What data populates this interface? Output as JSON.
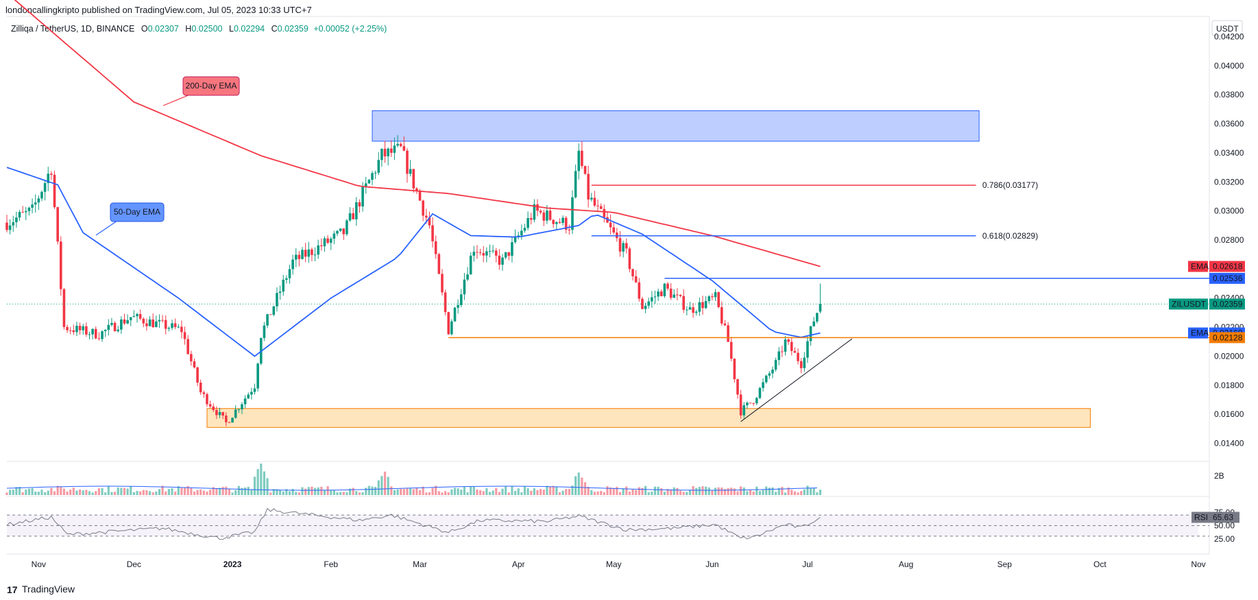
{
  "header": {
    "published": "londoncallingkripto published on TradingView.com, Jul 05, 2023 10:33 UTC+7"
  },
  "symbol": {
    "name": "Zilliqa / TetherUS, 1D, BINANCE",
    "ohlc": [
      {
        "key": "O",
        "value": "0.02307"
      },
      {
        "key": "H",
        "value": "0.02500"
      },
      {
        "key": "L",
        "value": "0.02294"
      },
      {
        "key": "C",
        "value": "0.02359"
      }
    ],
    "change": "+0.00052 (+2.25%)"
  },
  "price_axis": {
    "currency": "USDT"
  },
  "branding": {
    "logo_icon": "17",
    "logo_text": "TradingView"
  },
  "colors": {
    "up": "#089981",
    "down": "#f23645",
    "ema200": "#f23645",
    "ema50": "#2962ff",
    "zone_blue": "#b2c6ff",
    "zone_orange": "#ffe0b2",
    "support": "#f57c00",
    "rsi": "#787b86"
  },
  "chart_data": [
    {
      "type": "candlestick",
      "title": "",
      "x_axis": {
        "ticks": [
          "Nov",
          "Dec",
          "2023",
          "Feb",
          "Mar",
          "Apr",
          "May",
          "Jun",
          "Jul",
          "Aug",
          "Sep",
          "Oct",
          "Nov"
        ]
      },
      "y_axis": {
        "ticks": [
          "0.04200",
          "0.04000",
          "0.03800",
          "0.03600",
          "0.03400",
          "0.03200",
          "0.03000",
          "0.02800",
          "0.02600",
          "0.02400",
          "0.02200",
          "0.02000",
          "0.01800",
          "0.01600",
          "0.01400"
        ],
        "range": [
          0.0128,
          0.0432
        ]
      },
      "ohlc_keyframes": [
        {
          "date": "2022-10-22",
          "close": 0.0292
        },
        {
          "date": "2022-10-30",
          "close": 0.03
        },
        {
          "date": "2022-11-05",
          "close": 0.033
        },
        {
          "date": "2022-11-09",
          "close": 0.022
        },
        {
          "date": "2022-11-20",
          "close": 0.0215
        },
        {
          "date": "2022-11-30",
          "close": 0.0227
        },
        {
          "date": "2022-12-16",
          "close": 0.0218
        },
        {
          "date": "2022-12-22",
          "close": 0.0175
        },
        {
          "date": "2022-12-30",
          "close": 0.0154
        },
        {
          "date": "2023-01-08",
          "close": 0.018
        },
        {
          "date": "2023-01-10",
          "close": 0.0215
        },
        {
          "date": "2023-01-20",
          "close": 0.0265
        },
        {
          "date": "2023-02-05",
          "close": 0.0285
        },
        {
          "date": "2023-02-17",
          "close": 0.0338
        },
        {
          "date": "2023-02-23",
          "close": 0.0342
        },
        {
          "date": "2023-03-04",
          "close": 0.029
        },
        {
          "date": "2023-03-10",
          "close": 0.0218
        },
        {
          "date": "2023-03-18",
          "close": 0.0275
        },
        {
          "date": "2023-03-27",
          "close": 0.0265
        },
        {
          "date": "2023-04-06",
          "close": 0.03
        },
        {
          "date": "2023-04-17",
          "close": 0.029
        },
        {
          "date": "2023-04-20",
          "close": 0.034
        },
        {
          "date": "2023-04-23",
          "close": 0.031
        },
        {
          "date": "2023-05-05",
          "close": 0.027
        },
        {
          "date": "2023-05-10",
          "close": 0.0234
        },
        {
          "date": "2023-05-17",
          "close": 0.0247
        },
        {
          "date": "2023-05-25",
          "close": 0.0232
        },
        {
          "date": "2023-06-02",
          "close": 0.024
        },
        {
          "date": "2023-06-06",
          "close": 0.021
        },
        {
          "date": "2023-06-10",
          "close": 0.0162
        },
        {
          "date": "2023-06-14",
          "close": 0.017
        },
        {
          "date": "2023-06-21",
          "close": 0.0195
        },
        {
          "date": "2023-06-24",
          "close": 0.021
        },
        {
          "date": "2023-06-29",
          "close": 0.0195
        },
        {
          "date": "2023-07-03",
          "close": 0.0225
        },
        {
          "date": "2023-07-05",
          "close": 0.02359
        }
      ],
      "last_bar": {
        "open": 0.02307,
        "high": 0.025,
        "low": 0.02294,
        "close": 0.02359
      },
      "indicators": [
        {
          "name": "EMA",
          "label_on_chart": "200-Day EMA",
          "last": "0.02618",
          "keyframes": [
            {
              "date": "2022-10-22",
              "value": 0.045
            },
            {
              "date": "2022-12-01",
              "value": 0.0375
            },
            {
              "date": "2023-01-10",
              "value": 0.0338
            },
            {
              "date": "2023-02-10",
              "value": 0.0317
            },
            {
              "date": "2023-03-10",
              "value": 0.0312
            },
            {
              "date": "2023-04-10",
              "value": 0.0302
            },
            {
              "date": "2023-05-01",
              "value": 0.0299
            },
            {
              "date": "2023-06-01",
              "value": 0.0283
            },
            {
              "date": "2023-07-05",
              "value": 0.02618
            }
          ]
        },
        {
          "name": "EMA",
          "label_on_chart": "50-Day EMA",
          "last": "0.02160",
          "keyframes": [
            {
              "date": "2022-10-22",
              "value": 0.033
            },
            {
              "date": "2022-11-07",
              "value": 0.0318
            },
            {
              "date": "2022-11-15",
              "value": 0.0285
            },
            {
              "date": "2022-12-15",
              "value": 0.024
            },
            {
              "date": "2023-01-08",
              "value": 0.02
            },
            {
              "date": "2023-02-01",
              "value": 0.024
            },
            {
              "date": "2023-02-22",
              "value": 0.0268
            },
            {
              "date": "2023-03-05",
              "value": 0.0298
            },
            {
              "date": "2023-03-17",
              "value": 0.0283
            },
            {
              "date": "2023-04-01",
              "value": 0.0282
            },
            {
              "date": "2023-04-20",
              "value": 0.029
            },
            {
              "date": "2023-04-25",
              "value": 0.0298
            },
            {
              "date": "2023-05-10",
              "value": 0.0284
            },
            {
              "date": "2023-06-01",
              "value": 0.0252
            },
            {
              "date": "2023-06-20",
              "value": 0.0217
            },
            {
              "date": "2023-06-29",
              "value": 0.0213
            },
            {
              "date": "2023-07-05",
              "value": 0.0216
            }
          ]
        }
      ],
      "zones": [
        {
          "from": "2023-02-14",
          "to": "2023-08-24",
          "low": 0.0348,
          "high": 0.0369,
          "color": "blue"
        },
        {
          "from": "2022-12-24",
          "to": "2023-09-28",
          "low": 0.0151,
          "high": 0.0164,
          "color": "orange"
        }
      ],
      "levels": [
        {
          "label": "0.786(0.03177)",
          "price": 0.03177,
          "from": "2023-04-24",
          "to": "2023-08-23",
          "label_at": "2023-08-25"
        },
        {
          "label": "0.618(0.02829)",
          "price": 0.02829,
          "from": "2023-04-24",
          "to": "2023-08-23",
          "label_at": "2023-08-25"
        },
        {
          "label": "",
          "price": 0.02536,
          "from": "2023-05-17",
          "to": "2023-11-01"
        },
        {
          "label": "",
          "price": 0.02128,
          "from": "2023-03-10",
          "to": "2023-11-01"
        }
      ],
      "trendline": {
        "from": {
          "date": "2023-06-10",
          "price": 0.0155
        },
        "to": {
          "date": "2023-07-15",
          "price": 0.0212
        }
      },
      "axis_tags": [
        {
          "name": "EMA",
          "value": "0.02618",
          "price": 0.02618,
          "color": "#f23645"
        },
        {
          "name": "",
          "value": "0.02536",
          "price": 0.02536,
          "color": "#2962ff"
        },
        {
          "name": "ZILUSDT",
          "value": "0.02359",
          "price": 0.02359,
          "color": "#089981"
        },
        {
          "name": "EMA",
          "value": "0.02160",
          "price": 0.0216,
          "color": "#2962ff"
        },
        {
          "name": "",
          "value": "0.02128",
          "price": 0.02128,
          "color": "#f57c00"
        }
      ],
      "annotations": [
        "200-Day EMA",
        "50-Day EMA"
      ]
    },
    {
      "type": "bar",
      "title": "Volume",
      "y_axis": {
        "ticks": [
          "2B"
        ]
      },
      "notable_spikes": [
        {
          "date": "2023-01-10",
          "value": "~2.4B"
        },
        {
          "date": "2023-02-18",
          "value": "~1.3B"
        },
        {
          "date": "2023-04-20",
          "value": "~1.4B"
        }
      ]
    },
    {
      "type": "line",
      "title": "RSI",
      "last": "65.63",
      "y_axis": {
        "ticks": [
          "75.00",
          "50.00",
          "25.00"
        ],
        "range": [
          0,
          100
        ]
      },
      "bands": [
        30,
        70
      ],
      "keyframes": [
        {
          "date": "2022-10-22",
          "value": 52
        },
        {
          "date": "2022-11-05",
          "value": 66
        },
        {
          "date": "2022-11-10",
          "value": 33
        },
        {
          "date": "2022-12-10",
          "value": 45
        },
        {
          "date": "2022-12-28",
          "value": 26
        },
        {
          "date": "2023-01-08",
          "value": 38
        },
        {
          "date": "2023-01-12",
          "value": 80
        },
        {
          "date": "2023-01-22",
          "value": 73
        },
        {
          "date": "2023-02-10",
          "value": 60
        },
        {
          "date": "2023-02-20",
          "value": 70
        },
        {
          "date": "2023-03-03",
          "value": 50
        },
        {
          "date": "2023-03-10",
          "value": 37
        },
        {
          "date": "2023-03-20",
          "value": 60
        },
        {
          "date": "2023-04-10",
          "value": 58
        },
        {
          "date": "2023-04-20",
          "value": 68
        },
        {
          "date": "2023-05-05",
          "value": 42
        },
        {
          "date": "2023-05-20",
          "value": 45
        },
        {
          "date": "2023-06-02",
          "value": 52
        },
        {
          "date": "2023-06-10",
          "value": 26
        },
        {
          "date": "2023-06-14",
          "value": 28
        },
        {
          "date": "2023-06-24",
          "value": 52
        },
        {
          "date": "2023-06-29",
          "value": 46
        },
        {
          "date": "2023-07-05",
          "value": 65.63
        }
      ]
    }
  ]
}
